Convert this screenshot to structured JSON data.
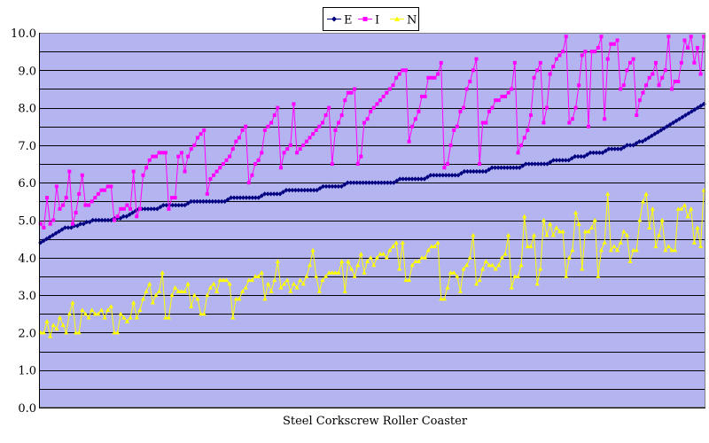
{
  "chart_data": {
    "type": "line",
    "title": "",
    "xlabel": "Steel Corkscrew Roller Coaster",
    "ylabel": "",
    "ylim": [
      0,
      10
    ],
    "yticks": [
      "0.0",
      "1.0",
      "2.0",
      "3.0",
      "4.0",
      "5.0",
      "6.0",
      "7.0",
      "8.0",
      "9.0",
      "10.0"
    ],
    "grid": true,
    "legend_position": "top-center",
    "plot_background": "#b4b4f0",
    "series": [
      {
        "name": "E",
        "color": "#000080",
        "marker": "diamond",
        "values": [
          4.4,
          4.45,
          4.5,
          4.55,
          4.6,
          4.65,
          4.7,
          4.75,
          4.8,
          4.8,
          4.8,
          4.85,
          4.85,
          4.9,
          4.9,
          4.95,
          4.95,
          5.0,
          5.0,
          5.0,
          5.0,
          5.0,
          5.0,
          5.0,
          5.05,
          5.05,
          5.05,
          5.1,
          5.1,
          5.15,
          5.2,
          5.25,
          5.3,
          5.3,
          5.3,
          5.3,
          5.3,
          5.3,
          5.3,
          5.35,
          5.4,
          5.4,
          5.4,
          5.4,
          5.4,
          5.4,
          5.4,
          5.4,
          5.45,
          5.5,
          5.5,
          5.5,
          5.5,
          5.5,
          5.5,
          5.5,
          5.5,
          5.5,
          5.5,
          5.5,
          5.5,
          5.55,
          5.6,
          5.6,
          5.6,
          5.6,
          5.6,
          5.6,
          5.6,
          5.6,
          5.6,
          5.6,
          5.65,
          5.7,
          5.7,
          5.7,
          5.7,
          5.7,
          5.7,
          5.75,
          5.8,
          5.8,
          5.8,
          5.8,
          5.8,
          5.8,
          5.8,
          5.8,
          5.8,
          5.8,
          5.8,
          5.85,
          5.9,
          5.9,
          5.9,
          5.9,
          5.9,
          5.9,
          5.9,
          5.95,
          6.0,
          6.0,
          6.0,
          6.0,
          6.0,
          6.0,
          6.0,
          6.0,
          6.0,
          6.0,
          6.0,
          6.0,
          6.0,
          6.0,
          6.0,
          6.0,
          6.05,
          6.1,
          6.1,
          6.1,
          6.1,
          6.1,
          6.1,
          6.1,
          6.1,
          6.1,
          6.15,
          6.2,
          6.2,
          6.2,
          6.2,
          6.2,
          6.2,
          6.2,
          6.2,
          6.2,
          6.2,
          6.25,
          6.3,
          6.3,
          6.3,
          6.3,
          6.3,
          6.3,
          6.3,
          6.3,
          6.35,
          6.4,
          6.4,
          6.4,
          6.4,
          6.4,
          6.4,
          6.4,
          6.4,
          6.4,
          6.4,
          6.45,
          6.5,
          6.5,
          6.5,
          6.5,
          6.5,
          6.5,
          6.5,
          6.5,
          6.55,
          6.6,
          6.6,
          6.6,
          6.6,
          6.6,
          6.6,
          6.65,
          6.7,
          6.7,
          6.7,
          6.7,
          6.75,
          6.8,
          6.8,
          6.8,
          6.8,
          6.8,
          6.85,
          6.9,
          6.9,
          6.9,
          6.9,
          6.9,
          6.95,
          7.0,
          7.0,
          7.0,
          7.05,
          7.1,
          7.1,
          7.15,
          7.2,
          7.25,
          7.3,
          7.35,
          7.4,
          7.45,
          7.5,
          7.55,
          7.6,
          7.65,
          7.7,
          7.75,
          7.8,
          7.85,
          7.9,
          7.95,
          8.0,
          8.05,
          8.1
        ]
      },
      {
        "name": "I",
        "color": "#ff00ff",
        "marker": "square",
        "values": [
          4.9,
          4.8,
          5.6,
          4.9,
          5.0,
          5.9,
          5.3,
          5.4,
          5.6,
          6.3,
          4.9,
          5.2,
          5.7,
          6.2,
          5.4,
          5.4,
          5.5,
          5.6,
          5.7,
          5.8,
          5.8,
          5.9,
          5.9,
          5.0,
          5.1,
          5.3,
          5.3,
          5.4,
          5.3,
          6.3,
          5.1,
          5.3,
          6.2,
          6.4,
          6.6,
          6.7,
          6.7,
          6.8,
          6.8,
          6.8,
          5.3,
          5.6,
          5.6,
          6.7,
          6.8,
          6.3,
          6.7,
          6.9,
          7.0,
          7.2,
          7.3,
          7.4,
          5.7,
          6.1,
          6.2,
          6.3,
          6.4,
          6.5,
          6.6,
          6.7,
          6.9,
          7.1,
          7.2,
          7.4,
          7.5,
          6.0,
          6.2,
          6.5,
          6.6,
          6.8,
          7.4,
          7.5,
          7.6,
          7.8,
          8.0,
          6.4,
          6.8,
          6.9,
          7.0,
          8.1,
          6.8,
          6.9,
          7.0,
          7.1,
          7.2,
          7.3,
          7.4,
          7.5,
          7.6,
          7.8,
          8.0,
          6.5,
          7.4,
          7.6,
          7.8,
          8.2,
          8.4,
          8.4,
          8.5,
          6.5,
          6.7,
          7.6,
          7.7,
          7.9,
          8.0,
          8.1,
          8.2,
          8.3,
          8.4,
          8.5,
          8.6,
          8.8,
          8.9,
          9.0,
          9.0,
          7.1,
          7.5,
          7.7,
          7.9,
          8.3,
          8.3,
          8.8,
          8.8,
          8.8,
          8.9,
          9.2,
          6.4,
          6.5,
          7.0,
          7.4,
          7.5,
          7.9,
          8.0,
          8.5,
          8.7,
          9.0,
          9.3,
          6.5,
          7.6,
          7.6,
          7.9,
          8.0,
          8.2,
          8.2,
          8.3,
          8.3,
          8.4,
          8.5,
          9.2,
          6.8,
          7.0,
          7.2,
          7.4,
          7.8,
          8.8,
          9.0,
          9.2,
          7.6,
          8.0,
          8.9,
          9.1,
          9.3,
          9.4,
          9.5,
          9.9,
          7.6,
          7.7,
          8.0,
          8.6,
          9.4,
          9.5,
          7.5,
          9.5,
          9.5,
          9.6,
          9.9,
          7.7,
          9.3,
          9.7,
          9.7,
          9.8,
          8.5,
          8.6,
          9.0,
          9.2,
          9.3,
          7.8,
          8.2,
          8.4,
          8.6,
          8.8,
          8.9,
          9.2,
          8.6,
          8.8,
          9.0,
          9.9,
          8.5,
          8.7,
          8.7,
          9.2,
          9.8,
          9.6,
          9.9,
          9.2,
          9.6,
          8.9,
          9.9
        ]
      },
      {
        "name": "N",
        "color": "#ffff00",
        "marker": "triangle",
        "values": [
          2.0,
          2.0,
          2.3,
          1.9,
          2.2,
          2.1,
          2.4,
          2.2,
          2.0,
          2.5,
          2.8,
          2.0,
          2.0,
          2.6,
          2.5,
          2.4,
          2.6,
          2.5,
          2.5,
          2.6,
          2.4,
          2.6,
          2.7,
          2.0,
          2.0,
          2.5,
          2.4,
          2.3,
          2.4,
          2.8,
          2.4,
          2.6,
          2.9,
          3.1,
          3.3,
          2.8,
          3.0,
          3.1,
          3.6,
          2.4,
          2.4,
          3.0,
          3.2,
          3.1,
          3.1,
          3.1,
          3.3,
          2.7,
          3.0,
          2.9,
          2.5,
          2.5,
          3.0,
          3.2,
          3.3,
          3.1,
          3.4,
          3.4,
          3.4,
          3.3,
          2.4,
          2.9,
          2.9,
          3.1,
          3.2,
          3.4,
          3.4,
          3.5,
          3.5,
          3.6,
          2.9,
          3.3,
          3.1,
          3.4,
          3.9,
          3.2,
          3.3,
          3.4,
          3.1,
          3.3,
          3.2,
          3.4,
          3.3,
          3.5,
          3.8,
          4.2,
          3.5,
          3.1,
          3.4,
          3.5,
          3.6,
          3.6,
          3.6,
          3.6,
          3.9,
          3.1,
          3.9,
          3.7,
          3.5,
          3.8,
          4.1,
          3.6,
          3.9,
          4.0,
          3.8,
          4.0,
          4.1,
          4.1,
          4.0,
          4.2,
          4.3,
          4.4,
          3.7,
          4.4,
          3.4,
          3.4,
          3.8,
          3.9,
          3.9,
          4.0,
          4.0,
          4.2,
          4.3,
          4.3,
          4.4,
          2.9,
          2.9,
          3.2,
          3.6,
          3.6,
          3.5,
          3.1,
          3.7,
          3.8,
          4.0,
          4.6,
          3.3,
          3.4,
          3.7,
          3.9,
          3.8,
          3.8,
          3.7,
          3.8,
          4.0,
          4.1,
          4.6,
          3.2,
          3.5,
          3.5,
          3.8,
          5.1,
          4.3,
          4.3,
          4.6,
          3.3,
          3.7,
          5.0,
          4.6,
          4.9,
          4.6,
          4.8,
          4.7,
          4.7,
          3.5,
          4.0,
          4.2,
          5.2,
          4.9,
          3.7,
          4.7,
          4.7,
          4.8,
          5.0,
          3.5,
          4.2,
          4.4,
          5.7,
          4.2,
          4.3,
          4.2,
          4.4,
          4.7,
          4.6,
          3.9,
          4.2,
          4.2,
          5.0,
          5.5,
          5.7,
          4.8,
          5.3,
          4.3,
          4.6,
          5.0,
          4.2,
          4.3,
          4.2,
          4.2,
          5.3,
          5.3,
          5.4,
          5.1,
          5.3,
          4.4,
          4.8,
          4.3,
          5.8
        ]
      }
    ]
  }
}
